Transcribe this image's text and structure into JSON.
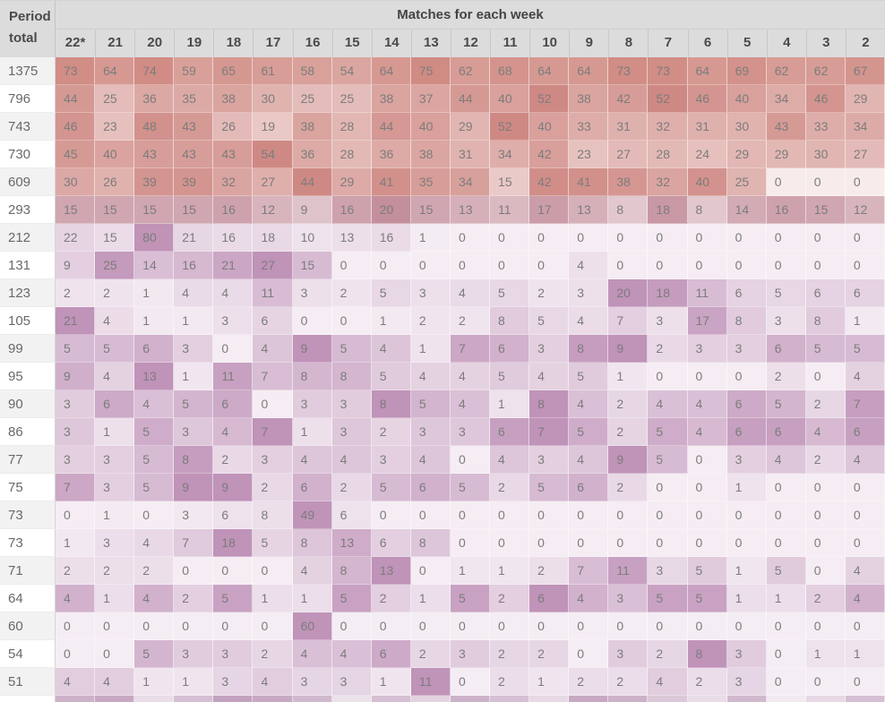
{
  "header": {
    "corner_line1": "Period",
    "corner_line2": "total",
    "group_title": "Matches for each week"
  },
  "chart_data": {
    "type": "heatmap",
    "title": "Matches for each week",
    "row_header": "Period total",
    "columns": [
      "22*",
      "21",
      "20",
      "19",
      "18",
      "17",
      "16",
      "15",
      "14",
      "13",
      "12",
      "11",
      "10",
      "9",
      "8",
      "7",
      "6",
      "5",
      "4",
      "3",
      "2"
    ],
    "rows": [
      {
        "total": 1375,
        "values": [
          73,
          64,
          74,
          59,
          65,
          61,
          58,
          54,
          64,
          75,
          62,
          68,
          64,
          64,
          73,
          73,
          64,
          69,
          62,
          62,
          67
        ]
      },
      {
        "total": 796,
        "values": [
          44,
          25,
          36,
          35,
          38,
          30,
          25,
          25,
          38,
          37,
          44,
          40,
          52,
          38,
          42,
          52,
          46,
          40,
          34,
          46,
          29
        ]
      },
      {
        "total": 743,
        "values": [
          46,
          23,
          48,
          43,
          26,
          19,
          38,
          28,
          44,
          40,
          29,
          52,
          40,
          33,
          31,
          32,
          31,
          30,
          43,
          33,
          34
        ]
      },
      {
        "total": 730,
        "values": [
          45,
          40,
          43,
          43,
          43,
          54,
          36,
          28,
          36,
          38,
          31,
          34,
          42,
          23,
          27,
          28,
          24,
          29,
          29,
          30,
          27
        ]
      },
      {
        "total": 609,
        "values": [
          30,
          26,
          39,
          39,
          32,
          27,
          44,
          29,
          41,
          35,
          34,
          15,
          42,
          41,
          38,
          32,
          40,
          25,
          0,
          0,
          0
        ]
      },
      {
        "total": 293,
        "values": [
          15,
          15,
          15,
          15,
          16,
          12,
          9,
          16,
          20,
          15,
          13,
          11,
          17,
          13,
          8,
          18,
          8,
          14,
          16,
          15,
          12
        ]
      },
      {
        "total": 212,
        "values": [
          22,
          15,
          80,
          21,
          16,
          18,
          10,
          13,
          16,
          1,
          0,
          0,
          0,
          0,
          0,
          0,
          0,
          0,
          0,
          0,
          0
        ]
      },
      {
        "total": 131,
        "values": [
          9,
          25,
          14,
          16,
          21,
          27,
          15,
          0,
          0,
          0,
          0,
          0,
          0,
          4,
          0,
          0,
          0,
          0,
          0,
          0,
          0
        ]
      },
      {
        "total": 123,
        "values": [
          2,
          2,
          1,
          4,
          4,
          11,
          3,
          2,
          5,
          3,
          4,
          5,
          2,
          3,
          20,
          18,
          11,
          6,
          5,
          6,
          6
        ]
      },
      {
        "total": 105,
        "values": [
          21,
          4,
          1,
          1,
          3,
          6,
          0,
          0,
          1,
          2,
          2,
          8,
          5,
          4,
          7,
          3,
          17,
          8,
          3,
          8,
          1
        ]
      },
      {
        "total": 99,
        "values": [
          5,
          5,
          6,
          3,
          0,
          4,
          9,
          5,
          4,
          1,
          7,
          6,
          3,
          8,
          9,
          2,
          3,
          3,
          6,
          5,
          5
        ]
      },
      {
        "total": 95,
        "values": [
          9,
          4,
          13,
          1,
          11,
          7,
          8,
          8,
          5,
          4,
          4,
          5,
          4,
          5,
          1,
          0,
          0,
          0,
          2,
          0,
          4
        ]
      },
      {
        "total": 90,
        "values": [
          3,
          6,
          4,
          5,
          6,
          0,
          3,
          3,
          8,
          5,
          4,
          1,
          8,
          4,
          2,
          4,
          4,
          6,
          5,
          2,
          7
        ]
      },
      {
        "total": 86,
        "values": [
          3,
          1,
          5,
          3,
          4,
          7,
          1,
          3,
          2,
          3,
          3,
          6,
          7,
          5,
          2,
          5,
          4,
          6,
          6,
          4,
          6
        ]
      },
      {
        "total": 77,
        "values": [
          3,
          3,
          5,
          8,
          2,
          3,
          4,
          4,
          3,
          4,
          0,
          4,
          3,
          4,
          9,
          5,
          0,
          3,
          4,
          2,
          4
        ]
      },
      {
        "total": 75,
        "values": [
          7,
          3,
          5,
          9,
          9,
          2,
          6,
          2,
          5,
          6,
          5,
          2,
          5,
          6,
          2,
          0,
          0,
          1,
          0,
          0,
          0
        ]
      },
      {
        "total": 73,
        "values": [
          0,
          1,
          0,
          3,
          6,
          8,
          49,
          6,
          0,
          0,
          0,
          0,
          0,
          0,
          0,
          0,
          0,
          0,
          0,
          0,
          0
        ]
      },
      {
        "total": 73,
        "values": [
          1,
          3,
          4,
          7,
          18,
          5,
          8,
          13,
          6,
          8,
          0,
          0,
          0,
          0,
          0,
          0,
          0,
          0,
          0,
          0,
          0
        ]
      },
      {
        "total": 71,
        "values": [
          2,
          2,
          2,
          0,
          0,
          0,
          4,
          8,
          13,
          0,
          1,
          1,
          2,
          7,
          11,
          3,
          5,
          1,
          5,
          0,
          4
        ]
      },
      {
        "total": 64,
        "values": [
          4,
          1,
          4,
          2,
          5,
          1,
          1,
          5,
          2,
          1,
          5,
          2,
          6,
          4,
          3,
          5,
          5,
          1,
          1,
          2,
          4
        ]
      },
      {
        "total": 60,
        "values": [
          0,
          0,
          0,
          0,
          0,
          0,
          60,
          0,
          0,
          0,
          0,
          0,
          0,
          0,
          0,
          0,
          0,
          0,
          0,
          0,
          0
        ]
      },
      {
        "total": 54,
        "values": [
          0,
          0,
          5,
          3,
          3,
          2,
          4,
          4,
          6,
          2,
          3,
          2,
          2,
          0,
          3,
          2,
          8,
          3,
          0,
          1,
          1
        ]
      },
      {
        "total": 51,
        "values": [
          4,
          4,
          1,
          1,
          3,
          4,
          3,
          3,
          1,
          11,
          0,
          2,
          1,
          2,
          2,
          4,
          2,
          3,
          0,
          0,
          0
        ]
      }
    ],
    "partial_row_colors": [
      "#ccb2c9",
      "#c7a9c4",
      "#e9dde7",
      "#d5bfd2",
      "#c2a1bf",
      "#c7a9c4",
      "#d0b8cd",
      "#ece2e9",
      "#d5bfd2",
      "#e3d3e0",
      "#ccb2c9",
      "#d5bfd2",
      "#e6d8e4",
      "#c7a9c4",
      "#ccb2c9",
      "#dbc8d8",
      "#e9dde7",
      "#d0b8cd",
      "#f2eaf0",
      "#e6d8e4",
      "#d5bfd2"
    ],
    "palette": {
      "header_bg": "#dcdcdc",
      "header_text": "#4a4a4a",
      "cell_text": "#7c7c7c",
      "total_text": "#696969",
      "zebra_even": "#f2f2f2",
      "zebra_odd": "#ffffff",
      "heat_high_salmon": "#d08c84",
      "heat_high_purple": "#c299b8",
      "heat_low": "#f5eff3"
    }
  }
}
